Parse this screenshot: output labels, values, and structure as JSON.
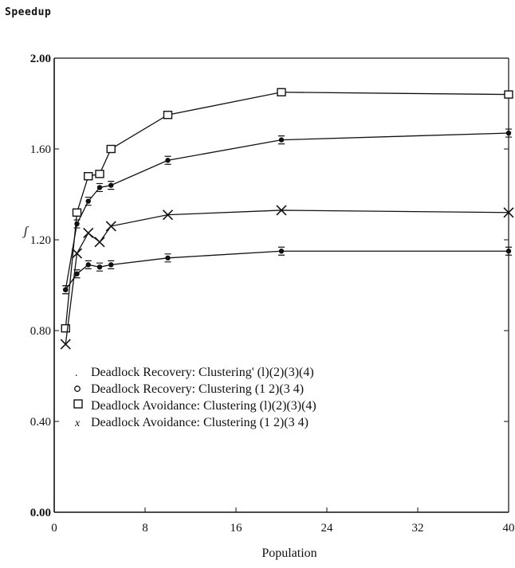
{
  "chart_data": {
    "type": "line",
    "title": "Speedup",
    "xlabel": "Population",
    "ylabel": "",
    "xlim": [
      0,
      40
    ],
    "ylim": [
      0.0,
      2.0
    ],
    "xticks": [
      0,
      8,
      16,
      24,
      32,
      40
    ],
    "yticks": [
      0.0,
      0.4,
      0.8,
      1.2,
      1.6,
      2.0
    ],
    "xtick_labels": [
      "0",
      "8",
      "16",
      "24",
      "32",
      "40"
    ],
    "ytick_labels": [
      "0.00",
      "0.40",
      "0.80",
      "1.20",
      "1.60",
      "2.00"
    ],
    "grid": false,
    "legend_position": "lower-left",
    "series": [
      {
        "name": "Deadlock Recovery: Clustering' (l)(2)(3)(4)",
        "legend_marker": ".",
        "marker": "dot",
        "x": [
          1,
          2,
          3,
          4,
          5,
          10,
          20,
          40
        ],
        "y": [
          0.98,
          1.05,
          1.09,
          1.08,
          1.09,
          1.12,
          1.15,
          1.15
        ]
      },
      {
        "name": "Deadlock Recovery: Clustering (1 2)(3 4)",
        "legend_marker": "o",
        "marker": "dot",
        "x": [
          1,
          2,
          3,
          4,
          5,
          10,
          20,
          40
        ],
        "y": [
          0.98,
          1.27,
          1.37,
          1.43,
          1.44,
          1.55,
          1.64,
          1.67
        ]
      },
      {
        "name": "Deadlock Avoidance: Clustering (l)(2)(3)(4)",
        "legend_marker": "□",
        "marker": "square",
        "x": [
          1,
          2,
          3,
          4,
          5,
          10,
          20,
          40
        ],
        "y": [
          0.81,
          1.32,
          1.48,
          1.49,
          1.6,
          1.75,
          1.85,
          1.84
        ]
      },
      {
        "name": "Deadlock Avoidance: Clustering (1 2)(3 4)",
        "legend_marker": "x",
        "marker": "x",
        "x": [
          1,
          2,
          3,
          4,
          5,
          10,
          20,
          40
        ],
        "y": [
          0.74,
          1.14,
          1.23,
          1.19,
          1.26,
          1.31,
          1.33,
          1.32
        ]
      }
    ],
    "colors": {
      "ink": "#111111",
      "background": "#ffffff"
    }
  }
}
